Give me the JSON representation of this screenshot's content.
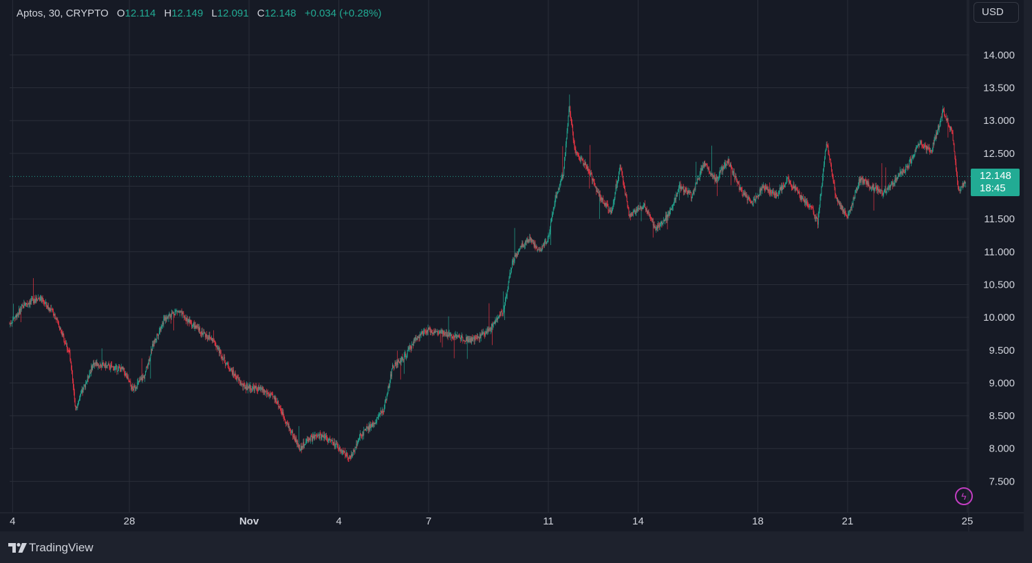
{
  "legend": {
    "symbol": "Aptos, 30, CRYPTO",
    "open_label": "O",
    "open_value": "12.114",
    "high_label": "H",
    "high_value": "12.149",
    "low_label": "L",
    "low_value": "12.091",
    "close_label": "C",
    "close_value": "12.148",
    "change": "+0.034 (+0.28%)"
  },
  "currency_button": "USD",
  "last_price": {
    "value": "12.148",
    "countdown": "18:45"
  },
  "footer": {
    "brand": "TradingView"
  },
  "colors": {
    "up": "#22ab94",
    "down": "#f23645",
    "grid": "#2a2e39",
    "accent": "#c33ec3"
  },
  "icons": {
    "bolt": "lightning-icon",
    "logo": "tradingview-logo-icon"
  },
  "chart_data": {
    "type": "candlestick",
    "interval": "30",
    "currency": "USD",
    "ylim": [
      7.0,
      14.5
    ],
    "y_ticks": [
      "7.500",
      "8.000",
      "8.500",
      "9.000",
      "9.500",
      "10.000",
      "10.500",
      "11.000",
      "11.500",
      "12.000",
      "12.500",
      "13.000",
      "13.500",
      "14.000"
    ],
    "x_ticks": [
      "4",
      "28",
      "Nov",
      "4",
      "7",
      "11",
      "14",
      "18",
      "21",
      "25"
    ],
    "x_tick_days": [
      24.1,
      28,
      32,
      35,
      38,
      42,
      45,
      49,
      52,
      56
    ],
    "x_range_days": [
      24,
      56
    ],
    "grid": true,
    "last_price": 12.148,
    "price_path": [
      [
        24.0,
        9.9
      ],
      [
        24.5,
        10.2
      ],
      [
        25.0,
        10.3
      ],
      [
        25.5,
        10.05
      ],
      [
        26.0,
        9.45
      ],
      [
        26.2,
        8.6
      ],
      [
        26.8,
        9.3
      ],
      [
        27.3,
        9.25
      ],
      [
        27.8,
        9.2
      ],
      [
        28.1,
        8.9
      ],
      [
        28.5,
        9.1
      ],
      [
        28.8,
        9.6
      ],
      [
        29.2,
        10.0
      ],
      [
        29.6,
        10.1
      ],
      [
        30.2,
        9.85
      ],
      [
        30.8,
        9.65
      ],
      [
        31.3,
        9.25
      ],
      [
        31.8,
        8.95
      ],
      [
        32.4,
        8.9
      ],
      [
        32.9,
        8.75
      ],
      [
        33.3,
        8.35
      ],
      [
        33.7,
        8.0
      ],
      [
        34.0,
        8.15
      ],
      [
        34.5,
        8.2
      ],
      [
        35.0,
        8.0
      ],
      [
        35.4,
        7.85
      ],
      [
        35.7,
        8.2
      ],
      [
        36.1,
        8.35
      ],
      [
        36.5,
        8.6
      ],
      [
        36.8,
        9.25
      ],
      [
        37.2,
        9.4
      ],
      [
        37.6,
        9.7
      ],
      [
        38.0,
        9.8
      ],
      [
        38.5,
        9.75
      ],
      [
        39.0,
        9.7
      ],
      [
        39.5,
        9.65
      ],
      [
        40.0,
        9.8
      ],
      [
        40.5,
        10.1
      ],
      [
        40.8,
        10.85
      ],
      [
        41.1,
        11.1
      ],
      [
        41.4,
        11.2
      ],
      [
        41.7,
        11.0
      ],
      [
        42.0,
        11.2
      ],
      [
        42.2,
        11.75
      ],
      [
        42.5,
        12.2
      ],
      [
        42.7,
        13.25
      ],
      [
        42.9,
        12.5
      ],
      [
        43.3,
        12.3
      ],
      [
        43.7,
        11.85
      ],
      [
        44.1,
        11.6
      ],
      [
        44.4,
        12.3
      ],
      [
        44.7,
        11.55
      ],
      [
        45.2,
        11.7
      ],
      [
        45.6,
        11.35
      ],
      [
        46.0,
        11.55
      ],
      [
        46.4,
        12.0
      ],
      [
        46.8,
        11.85
      ],
      [
        47.2,
        12.35
      ],
      [
        47.6,
        12.1
      ],
      [
        48.0,
        12.4
      ],
      [
        48.4,
        11.95
      ],
      [
        48.8,
        11.75
      ],
      [
        49.2,
        12.0
      ],
      [
        49.6,
        11.85
      ],
      [
        50.0,
        12.1
      ],
      [
        50.4,
        11.85
      ],
      [
        50.8,
        11.65
      ],
      [
        51.0,
        11.45
      ],
      [
        51.3,
        12.7
      ],
      [
        51.6,
        11.85
      ],
      [
        52.0,
        11.5
      ],
      [
        52.4,
        12.1
      ],
      [
        52.8,
        12.0
      ],
      [
        53.2,
        11.9
      ],
      [
        53.6,
        12.1
      ],
      [
        54.0,
        12.3
      ],
      [
        54.4,
        12.65
      ],
      [
        54.8,
        12.55
      ],
      [
        55.2,
        13.15
      ],
      [
        55.5,
        12.8
      ],
      [
        55.7,
        11.9
      ],
      [
        56.0,
        12.148
      ]
    ]
  }
}
